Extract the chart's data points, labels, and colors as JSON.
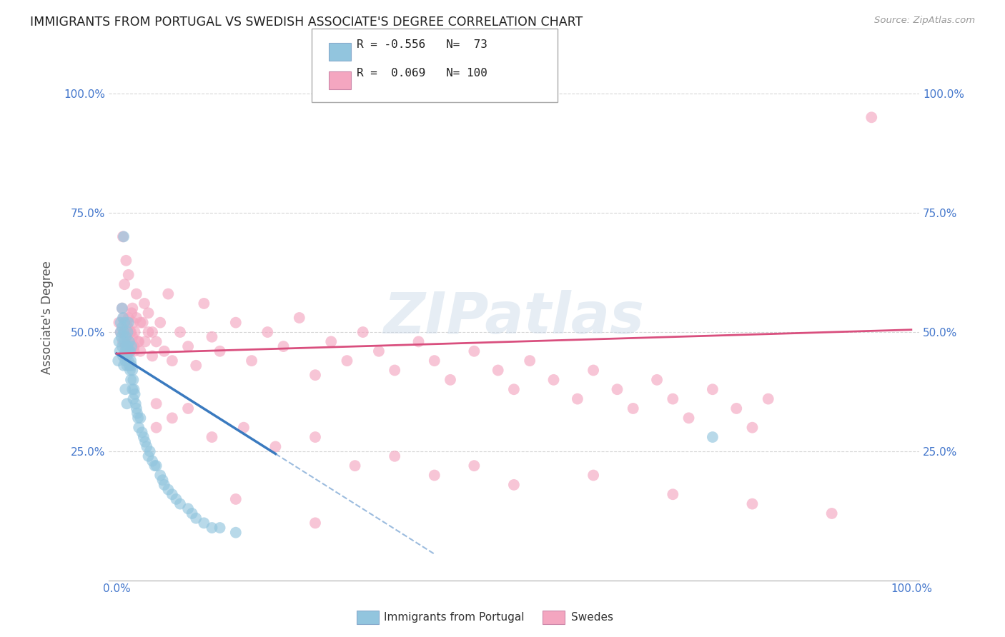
{
  "title": "IMMIGRANTS FROM PORTUGAL VS SWEDISH ASSOCIATE'S DEGREE CORRELATION CHART",
  "source": "Source: ZipAtlas.com",
  "ylabel": "Associate's Degree",
  "y_tick_labels": [
    "25.0%",
    "50.0%",
    "75.0%",
    "100.0%"
  ],
  "y_tick_positions": [
    0.25,
    0.5,
    0.75,
    1.0
  ],
  "xlim": [
    -0.01,
    1.01
  ],
  "ylim": [
    -0.02,
    1.08
  ],
  "blue_R": -0.556,
  "blue_N": 73,
  "pink_R": 0.069,
  "pink_N": 100,
  "blue_color": "#92c5de",
  "pink_color": "#f4a6c0",
  "blue_line_color": "#3a7abf",
  "pink_line_color": "#d94f7e",
  "legend_label_blue": "Immigrants from Portugal",
  "legend_label_pink": "Swedes",
  "watermark": "ZIPatlas",
  "background_color": "#ffffff",
  "grid_color": "#cccccc",
  "title_color": "#222222",
  "axis_label_color": "#4477cc",
  "blue_x": [
    0.002,
    0.003,
    0.004,
    0.005,
    0.005,
    0.006,
    0.007,
    0.007,
    0.008,
    0.008,
    0.009,
    0.009,
    0.01,
    0.01,
    0.011,
    0.011,
    0.012,
    0.012,
    0.013,
    0.013,
    0.014,
    0.014,
    0.015,
    0.015,
    0.015,
    0.016,
    0.016,
    0.017,
    0.017,
    0.018,
    0.018,
    0.019,
    0.019,
    0.02,
    0.02,
    0.021,
    0.021,
    0.022,
    0.023,
    0.024,
    0.025,
    0.026,
    0.027,
    0.028,
    0.03,
    0.032,
    0.034,
    0.036,
    0.038,
    0.04,
    0.042,
    0.045,
    0.048,
    0.05,
    0.055,
    0.058,
    0.06,
    0.065,
    0.07,
    0.075,
    0.08,
    0.09,
    0.095,
    0.1,
    0.11,
    0.12,
    0.13,
    0.15,
    0.007,
    0.009,
    0.011,
    0.013,
    0.75
  ],
  "blue_y": [
    0.44,
    0.48,
    0.46,
    0.5,
    0.52,
    0.49,
    0.51,
    0.47,
    0.53,
    0.45,
    0.5,
    0.43,
    0.48,
    0.52,
    0.46,
    0.44,
    0.49,
    0.47,
    0.45,
    0.43,
    0.47,
    0.5,
    0.46,
    0.44,
    0.52,
    0.43,
    0.48,
    0.42,
    0.46,
    0.44,
    0.4,
    0.43,
    0.47,
    0.38,
    0.42,
    0.4,
    0.36,
    0.38,
    0.37,
    0.35,
    0.34,
    0.33,
    0.32,
    0.3,
    0.32,
    0.29,
    0.28,
    0.27,
    0.26,
    0.24,
    0.25,
    0.23,
    0.22,
    0.22,
    0.2,
    0.19,
    0.18,
    0.17,
    0.16,
    0.15,
    0.14,
    0.13,
    0.12,
    0.11,
    0.1,
    0.09,
    0.09,
    0.08,
    0.55,
    0.7,
    0.38,
    0.35,
    0.28
  ],
  "pink_x": [
    0.003,
    0.005,
    0.007,
    0.008,
    0.009,
    0.01,
    0.011,
    0.012,
    0.013,
    0.014,
    0.015,
    0.016,
    0.017,
    0.018,
    0.019,
    0.02,
    0.021,
    0.022,
    0.023,
    0.025,
    0.027,
    0.03,
    0.033,
    0.036,
    0.04,
    0.045,
    0.05,
    0.055,
    0.06,
    0.065,
    0.07,
    0.08,
    0.09,
    0.1,
    0.11,
    0.12,
    0.13,
    0.15,
    0.17,
    0.19,
    0.21,
    0.23,
    0.25,
    0.27,
    0.29,
    0.31,
    0.33,
    0.35,
    0.38,
    0.4,
    0.42,
    0.45,
    0.48,
    0.5,
    0.52,
    0.55,
    0.58,
    0.6,
    0.63,
    0.65,
    0.68,
    0.7,
    0.72,
    0.75,
    0.78,
    0.8,
    0.82,
    0.02,
    0.025,
    0.03,
    0.035,
    0.04,
    0.045,
    0.01,
    0.015,
    0.008,
    0.012,
    0.018,
    0.022,
    0.028,
    0.05,
    0.07,
    0.09,
    0.12,
    0.16,
    0.2,
    0.25,
    0.3,
    0.35,
    0.4,
    0.45,
    0.5,
    0.6,
    0.7,
    0.8,
    0.9,
    0.95,
    0.05,
    0.15,
    0.25
  ],
  "pink_y": [
    0.52,
    0.5,
    0.55,
    0.48,
    0.53,
    0.5,
    0.47,
    0.52,
    0.49,
    0.51,
    0.53,
    0.48,
    0.5,
    0.46,
    0.54,
    0.49,
    0.52,
    0.47,
    0.5,
    0.53,
    0.48,
    0.46,
    0.52,
    0.48,
    0.5,
    0.45,
    0.48,
    0.52,
    0.46,
    0.58,
    0.44,
    0.5,
    0.47,
    0.43,
    0.56,
    0.49,
    0.46,
    0.52,
    0.44,
    0.5,
    0.47,
    0.53,
    0.41,
    0.48,
    0.44,
    0.5,
    0.46,
    0.42,
    0.48,
    0.44,
    0.4,
    0.46,
    0.42,
    0.38,
    0.44,
    0.4,
    0.36,
    0.42,
    0.38,
    0.34,
    0.4,
    0.36,
    0.32,
    0.38,
    0.34,
    0.3,
    0.36,
    0.55,
    0.58,
    0.52,
    0.56,
    0.54,
    0.5,
    0.6,
    0.62,
    0.7,
    0.65,
    0.5,
    0.46,
    0.48,
    0.3,
    0.32,
    0.34,
    0.28,
    0.3,
    0.26,
    0.28,
    0.22,
    0.24,
    0.2,
    0.22,
    0.18,
    0.2,
    0.16,
    0.14,
    0.12,
    0.95,
    0.35,
    0.15,
    0.1
  ]
}
